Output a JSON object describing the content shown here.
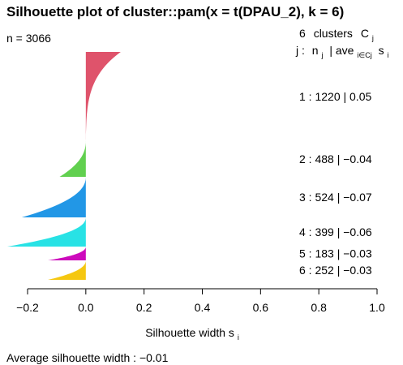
{
  "chart_data": {
    "type": "silhouette",
    "title": "Silhouette plot of cluster::pam(x = t(DPAU_2), k = 6)",
    "n_label": "n = 3066",
    "header": {
      "clusters_count": "6",
      "clusters_word": "clusters",
      "c_symbol": "C",
      "c_sub": "j",
      "j_prefix": "j :",
      "n_symbol": "n",
      "n_sub": "j",
      "ave_sep": "| ave",
      "ave_sub": "i∈Cj",
      "s_symbol": "s",
      "s_sub": "i"
    },
    "xlabel_main": "Silhouette width s",
    "xlabel_sub": "i",
    "xlim": [
      -0.2,
      1.0
    ],
    "ticks": [
      "−0.2",
      "0.0",
      "0.2",
      "0.4",
      "0.6",
      "0.8",
      "1.0"
    ],
    "average_label": "Average silhouette width :  −0.01",
    "clusters": [
      {
        "j": "1",
        "label": "1 :   1220  |  0.05",
        "n": 1220,
        "ave": 0.05,
        "min": 0.0,
        "max": 0.12,
        "color": "#DF536B"
      },
      {
        "j": "2",
        "label": "2 :  488  |  −0.04",
        "n": 488,
        "ave": -0.04,
        "min": -0.09,
        "max": 0.0,
        "color": "#61D04F"
      },
      {
        "j": "3",
        "label": "3 :  524  |  −0.07",
        "n": 524,
        "ave": -0.07,
        "min": -0.22,
        "max": 0.0,
        "color": "#2297E6"
      },
      {
        "j": "4",
        "label": "4 :  399  |  −0.06",
        "n": 399,
        "ave": -0.06,
        "min": -0.27,
        "max": 0.0,
        "color": "#28E2E5"
      },
      {
        "j": "5",
        "label": "5 :  183  |  −0.03",
        "n": 183,
        "ave": -0.03,
        "min": -0.13,
        "max": 0.0,
        "color": "#CD0BBC"
      },
      {
        "j": "6",
        "label": "6 :  252  |  −0.03",
        "n": 252,
        "ave": -0.03,
        "min": -0.13,
        "max": 0.0,
        "color": "#F5C710"
      }
    ]
  }
}
